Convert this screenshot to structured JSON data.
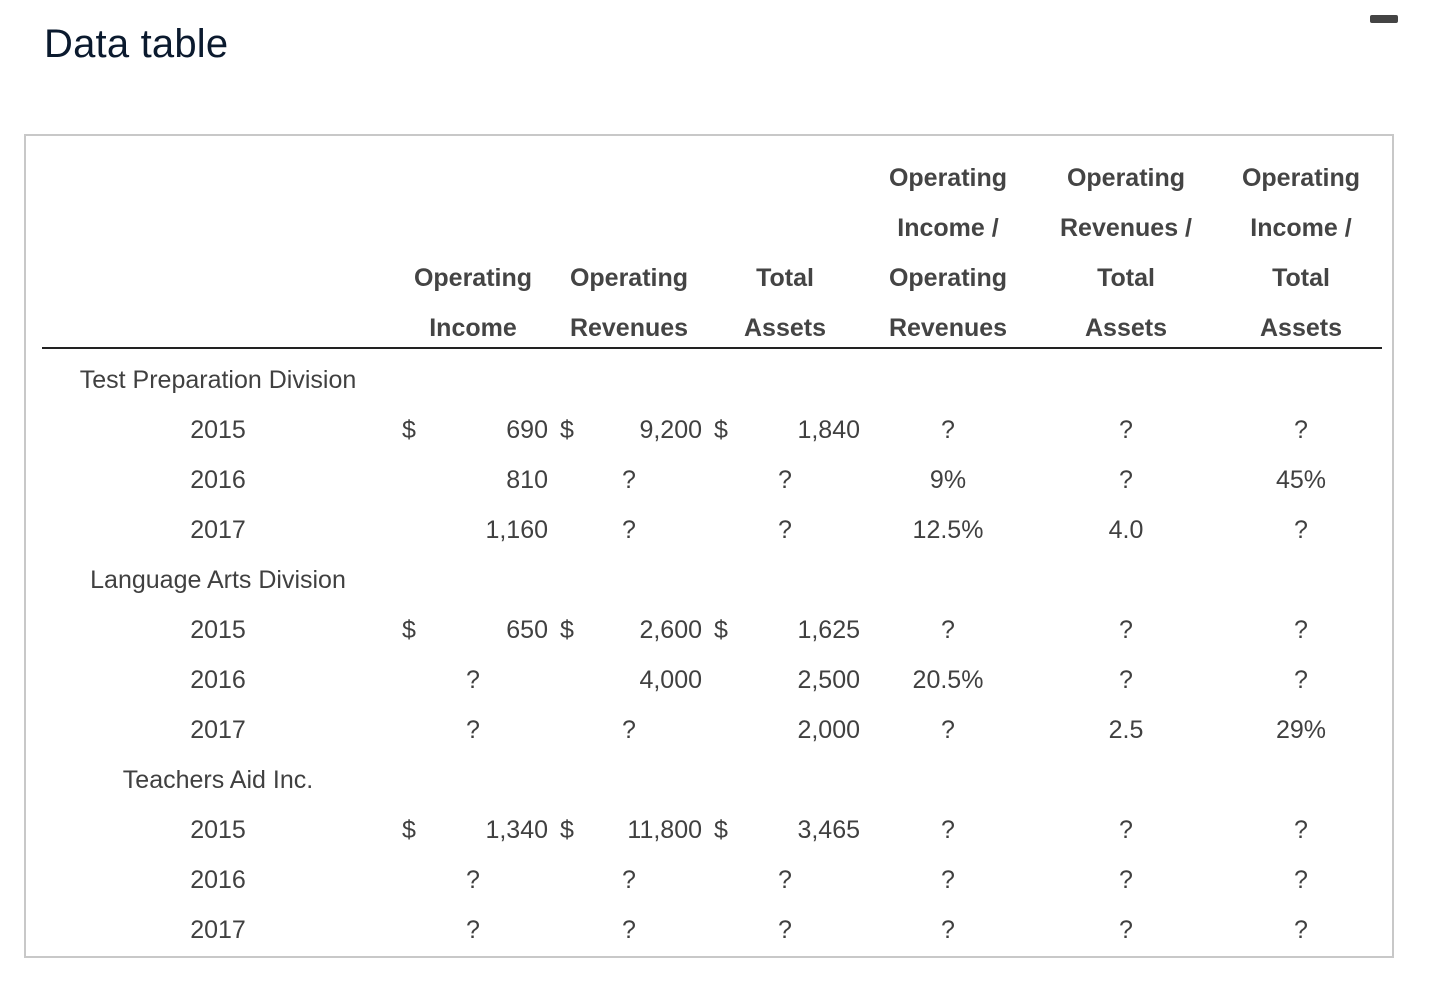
{
  "title": "Data table",
  "headers": {
    "operating_income": [
      "Operating",
      "Income"
    ],
    "operating_revenues": [
      "Operating",
      "Revenues"
    ],
    "total_assets": [
      "Total",
      "Assets"
    ],
    "oi_over_or": [
      "Operating",
      "Income /",
      "Operating",
      "Revenues"
    ],
    "or_over_ta": [
      "Operating",
      "Revenues /",
      "Total",
      "Assets"
    ],
    "oi_over_ta": [
      "Operating",
      "Income /",
      "Total",
      "Assets"
    ]
  },
  "groups": [
    {
      "name": "Test Preparation Division",
      "rows": [
        {
          "year": "2015",
          "income_cur": "$",
          "income": "690",
          "rev_cur": "$",
          "revenues": "9,200",
          "assets_cur": "$",
          "assets": "1,840",
          "oi_or": "?",
          "or_ta": "?",
          "oi_ta": "?"
        },
        {
          "year": "2016",
          "income_cur": "",
          "income": "810",
          "rev_cur": "?",
          "revenues": "",
          "assets_cur": "?",
          "assets": "",
          "oi_or": "9%",
          "or_ta": "?",
          "oi_ta": "45%"
        },
        {
          "year": "2017",
          "income_cur": "",
          "income": "1,160",
          "rev_cur": "?",
          "revenues": "",
          "assets_cur": "?",
          "assets": "",
          "oi_or": "12.5%",
          "or_ta": "4.0",
          "oi_ta": "?"
        }
      ]
    },
    {
      "name": "Language Arts Division",
      "rows": [
        {
          "year": "2015",
          "income_cur": "$",
          "income": "650",
          "rev_cur": "$",
          "revenues": "2,600",
          "assets_cur": "$",
          "assets": "1,625",
          "oi_or": "?",
          "or_ta": "?",
          "oi_ta": "?"
        },
        {
          "year": "2016",
          "income_cur": "?",
          "income": "",
          "rev_cur": "",
          "revenues": "4,000",
          "assets_cur": "",
          "assets": "2,500",
          "oi_or": "20.5%",
          "or_ta": "?",
          "oi_ta": "?"
        },
        {
          "year": "2017",
          "income_cur": "?",
          "income": "",
          "rev_cur": "?",
          "revenues": "",
          "assets_cur": "",
          "assets": "2,000",
          "oi_or": "?",
          "or_ta": "2.5",
          "oi_ta": "29%"
        }
      ]
    },
    {
      "name": "Teachers Aid Inc.",
      "rows": [
        {
          "year": "2015",
          "income_cur": "$",
          "income": "1,340",
          "rev_cur": "$",
          "revenues": "11,800",
          "assets_cur": "$",
          "assets": "3,465",
          "oi_or": "?",
          "or_ta": "?",
          "oi_ta": "?"
        },
        {
          "year": "2016",
          "income_cur": "?",
          "income": "",
          "rev_cur": "?",
          "revenues": "",
          "assets_cur": "?",
          "assets": "",
          "oi_or": "?",
          "or_ta": "?",
          "oi_ta": "?"
        },
        {
          "year": "2017",
          "income_cur": "?",
          "income": "",
          "rev_cur": "?",
          "revenues": "",
          "assets_cur": "?",
          "assets": "",
          "oi_or": "?",
          "or_ta": "?",
          "oi_ta": "?"
        }
      ]
    }
  ]
}
